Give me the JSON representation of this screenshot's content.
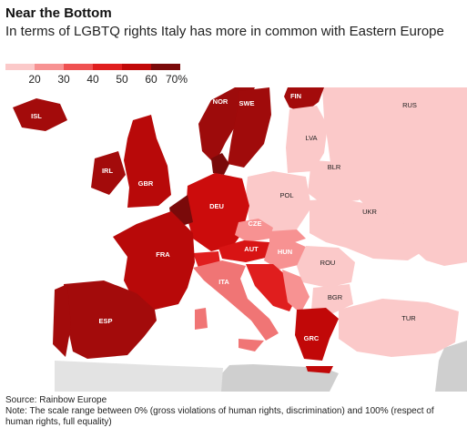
{
  "header": {
    "title": "Near the Bottom",
    "subtitle": "In terms of LGBTQ rights Italy has more in common with Eastern Europe"
  },
  "legend": {
    "bins": [
      {
        "color": "#fbc9c9"
      },
      {
        "color": "#f79292"
      },
      {
        "color": "#ef5151"
      },
      {
        "color": "#e01e1e"
      },
      {
        "color": "#c10808"
      },
      {
        "color": "#7a0a0a"
      }
    ],
    "ticks": [
      "20",
      "30",
      "40",
      "50",
      "60",
      "70%"
    ]
  },
  "countries": [
    {
      "code": "ISL",
      "color": "#a30b0b"
    },
    {
      "code": "NOR",
      "color": "#9d0b0b"
    },
    {
      "code": "SWE",
      "color": "#a00b0b"
    },
    {
      "code": "FIN",
      "color": "#a30b0b"
    },
    {
      "code": "LVA",
      "color": "#fbc9c9"
    },
    {
      "code": "RUS",
      "color": "#fbc9c9"
    },
    {
      "code": "IRL",
      "color": "#a30b0b"
    },
    {
      "code": "GBR",
      "color": "#b80909"
    },
    {
      "code": "BLR",
      "color": "#fbc9c9"
    },
    {
      "code": "POL",
      "color": "#fbc9c9"
    },
    {
      "code": "DEU",
      "color": "#cc0c0c"
    },
    {
      "code": "UKR",
      "color": "#fbc9c9"
    },
    {
      "code": "CZE",
      "color": "#f79292"
    },
    {
      "code": "FRA",
      "color": "#b80909"
    },
    {
      "code": "AUT",
      "color": "#d81414"
    },
    {
      "code": "HUN",
      "color": "#f79292"
    },
    {
      "code": "ROU",
      "color": "#fbc9c9"
    },
    {
      "code": "ITA",
      "color": "#f07575"
    },
    {
      "code": "BGR",
      "color": "#fbc9c9"
    },
    {
      "code": "ESP",
      "color": "#a30b0b"
    },
    {
      "code": "TUR",
      "color": "#fbc9c9"
    },
    {
      "code": "GRC",
      "color": "#c10808"
    }
  ],
  "footer": {
    "source": "Source: Rainbow Europe",
    "note": "Note: The scale range between 0% (gross violations of human rights, discrimination) and 100% (respect of human rights, full equality)"
  }
}
